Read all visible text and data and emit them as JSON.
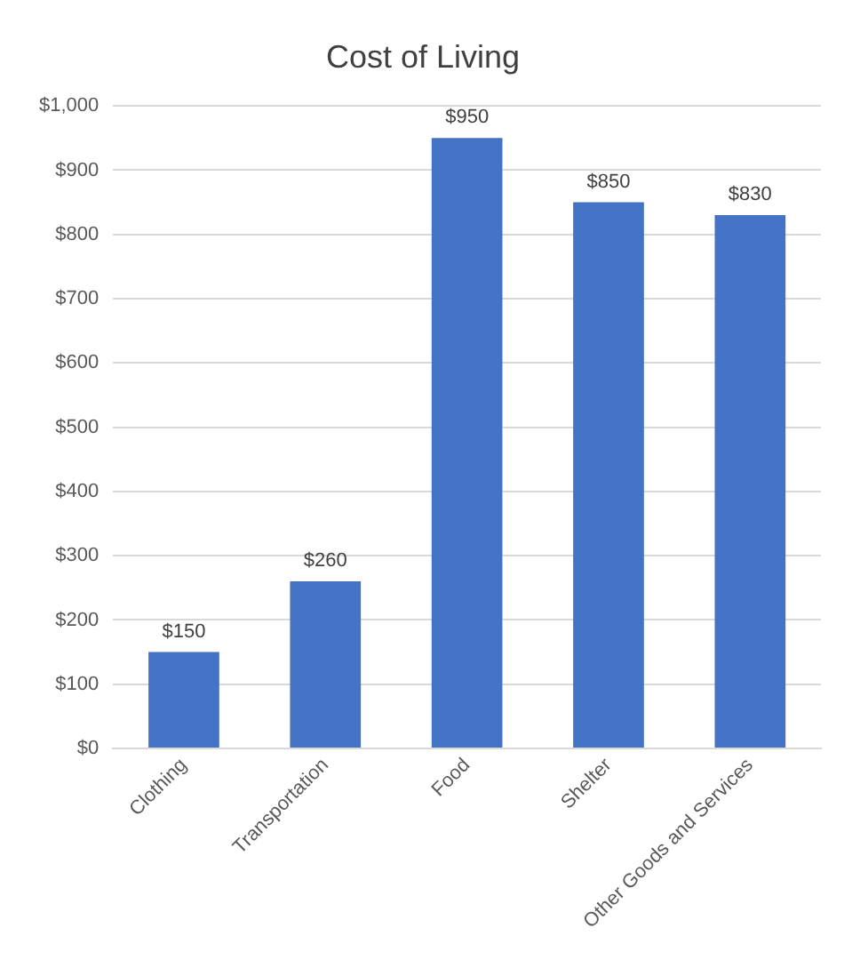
{
  "chart_data": {
    "type": "bar",
    "title": "Cost of Living",
    "categories": [
      "Clothing",
      "Transportation",
      "Food",
      "Shelter",
      "Other Goods and Services"
    ],
    "values": [
      150,
      260,
      950,
      850,
      830
    ],
    "color": "#4472c4",
    "value_labels": [
      "$150",
      "$260",
      "$950",
      "$850",
      "$830"
    ],
    "ylim": [
      0,
      1000
    ],
    "yticks": [
      {
        "value": 0,
        "label": "$0"
      },
      {
        "value": 100,
        "label": "$100"
      },
      {
        "value": 200,
        "label": "$200"
      },
      {
        "value": 300,
        "label": "$300"
      },
      {
        "value": 400,
        "label": "$400"
      },
      {
        "value": 500,
        "label": "$500"
      },
      {
        "value": 600,
        "label": "$600"
      },
      {
        "value": 700,
        "label": "$700"
      },
      {
        "value": 800,
        "label": "$800"
      },
      {
        "value": 900,
        "label": "$900"
      },
      {
        "value": 1000,
        "label": "$1,000"
      }
    ],
    "grid": "y"
  }
}
